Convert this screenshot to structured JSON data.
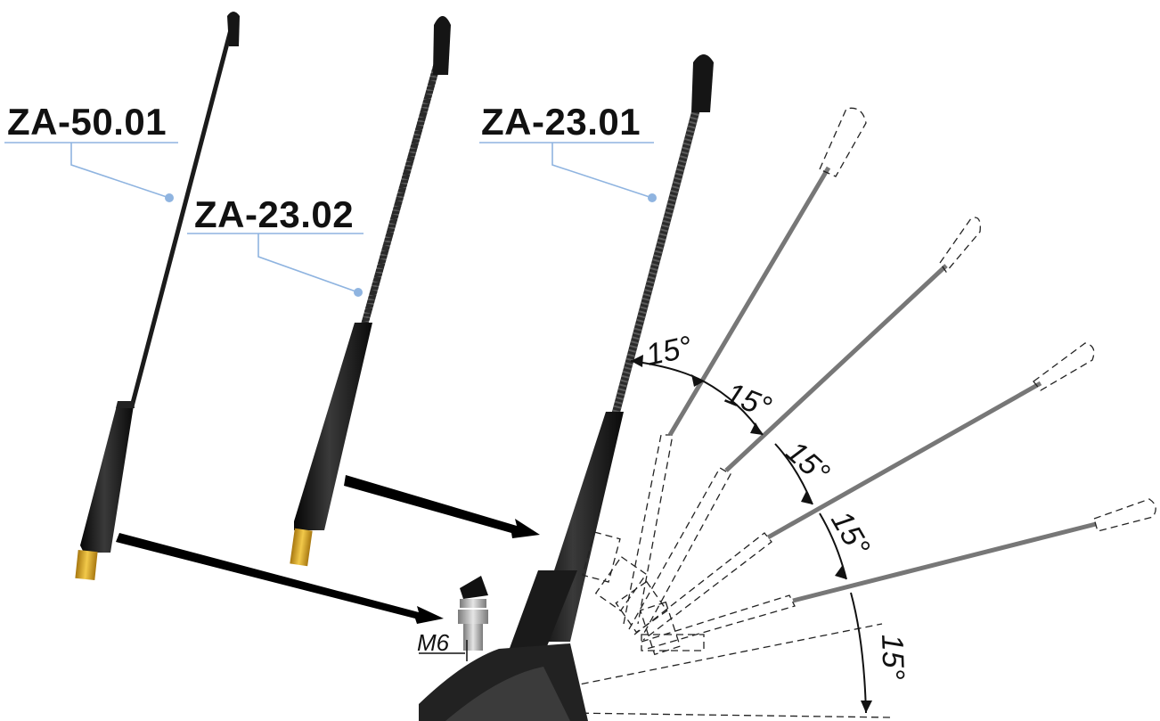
{
  "labels": {
    "za5001": "ZA-50.01",
    "za2302": "ZA-23.02",
    "za2301": "ZA-23.01"
  },
  "thread": "M6",
  "angle_step": "15°",
  "angles": [
    "15°",
    "15°",
    "15°",
    "15°",
    "15°"
  ],
  "colors": {
    "rod": "#1b1b1b",
    "leader": "#8fb4e0",
    "thread_brass": "#d9a620",
    "dashed": "#222222"
  }
}
